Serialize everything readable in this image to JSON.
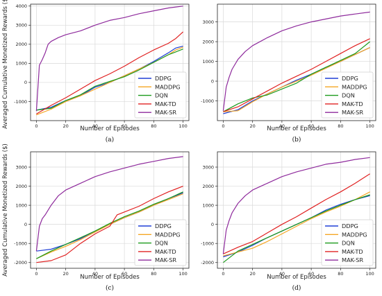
{
  "figure": {
    "ylabel": "Averaged Cumulative Monetized Rewards ($)",
    "legend_location": "lower right"
  },
  "chart_data": [
    {
      "type": "line",
      "caption": "(a)",
      "xlabel": "Number of Episodes",
      "ylabel": "Averaged Cumulative Monetized Rewards ($)",
      "xlim": [
        -4,
        104
      ],
      "ylim": [
        -2000,
        4100
      ],
      "xticks": [
        0,
        20,
        40,
        60,
        80,
        100
      ],
      "yticks": [
        -1000,
        0,
        1000,
        2000,
        3000,
        4000
      ],
      "grid": true,
      "legend": "lower right",
      "series": [
        {
          "name": "DDPG",
          "color": "#1f3fd6",
          "x": [
            0,
            10,
            20,
            30,
            40,
            50,
            60,
            70,
            80,
            90,
            95,
            100
          ],
          "y": [
            -1450,
            -1300,
            -950,
            -700,
            -250,
            0,
            350,
            700,
            1100,
            1550,
            1800,
            1900
          ]
        },
        {
          "name": "MADDPG",
          "color": "#f5a623",
          "x": [
            0,
            10,
            20,
            30,
            40,
            50,
            60,
            70,
            80,
            90,
            95,
            100
          ],
          "y": [
            -1700,
            -1400,
            -1000,
            -700,
            -350,
            0,
            350,
            700,
            1050,
            1450,
            1700,
            1850
          ]
        },
        {
          "name": "DQN",
          "color": "#1a9a1a",
          "x": [
            0,
            10,
            20,
            30,
            40,
            50,
            60,
            70,
            80,
            90,
            95,
            100
          ],
          "y": [
            -1450,
            -1350,
            -950,
            -650,
            -200,
            50,
            300,
            650,
            1050,
            1450,
            1600,
            1750
          ]
        },
        {
          "name": "MAK-TD",
          "color": "#e02020",
          "x": [
            0,
            10,
            20,
            30,
            40,
            50,
            60,
            70,
            80,
            90,
            95,
            100
          ],
          "y": [
            -1650,
            -1200,
            -800,
            -350,
            100,
            450,
            850,
            1300,
            1700,
            2050,
            2300,
            2650
          ]
        },
        {
          "name": "MAK-SR",
          "color": "#8e2a9c",
          "x": [
            0,
            2,
            4,
            6,
            8,
            10,
            15,
            20,
            30,
            40,
            50,
            60,
            70,
            80,
            90,
            100
          ],
          "y": [
            -1500,
            900,
            1200,
            1550,
            2000,
            2150,
            2350,
            2500,
            2700,
            3000,
            3250,
            3400,
            3600,
            3750,
            3900,
            4000
          ]
        }
      ]
    },
    {
      "type": "line",
      "caption": "(b)",
      "xlabel": "Number of Episodes",
      "ylabel": "",
      "xlim": [
        -4,
        104
      ],
      "ylim": [
        -2000,
        3900
      ],
      "xticks": [
        0,
        20,
        40,
        60,
        80,
        100
      ],
      "yticks": [
        -1000,
        0,
        1000,
        2000,
        3000
      ],
      "grid": true,
      "legend": "lower right",
      "series": [
        {
          "name": "DDPG",
          "color": "#1f3fd6",
          "x": [
            0,
            10,
            20,
            30,
            40,
            50,
            60,
            70,
            80,
            90,
            100
          ],
          "y": [
            -1650,
            -1450,
            -1000,
            -650,
            -300,
            50,
            350,
            700,
            1000,
            1350,
            1700
          ]
        },
        {
          "name": "MADDPG",
          "color": "#f5a623",
          "x": [
            0,
            10,
            20,
            30,
            40,
            50,
            60,
            70,
            80,
            90,
            100
          ],
          "y": [
            -1550,
            -1500,
            -1050,
            -650,
            -300,
            0,
            300,
            650,
            1000,
            1350,
            1700
          ]
        },
        {
          "name": "DQN",
          "color": "#1a9a1a",
          "x": [
            0,
            10,
            20,
            30,
            40,
            50,
            60,
            70,
            80,
            90,
            100
          ],
          "y": [
            -1550,
            -1150,
            -850,
            -700,
            -400,
            -100,
            350,
            700,
            1050,
            1400,
            2000
          ]
        },
        {
          "name": "MAK-TD",
          "color": "#e02020",
          "x": [
            0,
            10,
            20,
            30,
            40,
            50,
            60,
            70,
            80,
            90,
            100
          ],
          "y": [
            -1550,
            -1300,
            -900,
            -500,
            -100,
            250,
            600,
            1000,
            1400,
            1800,
            2150
          ]
        },
        {
          "name": "MAK-SR",
          "color": "#8e2a9c",
          "x": [
            0,
            2,
            4,
            6,
            10,
            15,
            20,
            30,
            40,
            50,
            60,
            70,
            80,
            90,
            100
          ],
          "y": [
            -1500,
            -300,
            200,
            600,
            1100,
            1500,
            1800,
            2200,
            2550,
            2800,
            3000,
            3150,
            3300,
            3400,
            3500
          ]
        }
      ]
    },
    {
      "type": "line",
      "caption": "(c)",
      "xlabel": "Number of Episodes",
      "ylabel": "Averaged Cumulative Monetized Rewards ($)",
      "xlim": [
        -4,
        104
      ],
      "ylim": [
        -2300,
        3800
      ],
      "xticks": [
        0,
        20,
        40,
        60,
        80,
        100
      ],
      "yticks": [
        -2000,
        -1000,
        0,
        1000,
        2000,
        3000
      ],
      "grid": true,
      "legend": "lower right",
      "series": [
        {
          "name": "DDPG",
          "color": "#1f3fd6",
          "x": [
            0,
            10,
            20,
            30,
            40,
            50,
            60,
            70,
            80,
            90,
            100
          ],
          "y": [
            -1400,
            -1300,
            -1050,
            -750,
            -350,
            0,
            350,
            650,
            1000,
            1350,
            1650
          ]
        },
        {
          "name": "MADDPG",
          "color": "#f5a623",
          "x": [
            0,
            10,
            20,
            30,
            40,
            50,
            60,
            70,
            80,
            90,
            100
          ],
          "y": [
            -1800,
            -1450,
            -1150,
            -800,
            -400,
            0,
            350,
            650,
            1000,
            1300,
            1600
          ]
        },
        {
          "name": "DQN",
          "color": "#1a9a1a",
          "x": [
            0,
            10,
            20,
            30,
            40,
            50,
            60,
            70,
            80,
            90,
            100
          ],
          "y": [
            -1800,
            -1400,
            -1050,
            -700,
            -350,
            50,
            400,
            700,
            1050,
            1350,
            1700
          ]
        },
        {
          "name": "MAK-TD",
          "color": "#e02020",
          "x": [
            0,
            10,
            20,
            30,
            40,
            50,
            55,
            60,
            70,
            80,
            90,
            100
          ],
          "y": [
            -2000,
            -1900,
            -1600,
            -1000,
            -500,
            -100,
            500,
            650,
            950,
            1350,
            1700,
            2000
          ]
        },
        {
          "name": "MAK-SR",
          "color": "#8e2a9c",
          "x": [
            0,
            2,
            4,
            6,
            10,
            15,
            20,
            30,
            40,
            50,
            60,
            70,
            80,
            90,
            100
          ],
          "y": [
            -1400,
            -100,
            300,
            500,
            1000,
            1500,
            1800,
            2150,
            2500,
            2750,
            2950,
            3150,
            3300,
            3450,
            3550
          ]
        }
      ]
    },
    {
      "type": "line",
      "caption": "(d)",
      "xlabel": "Number of Episodes",
      "ylabel": "",
      "xlim": [
        -4,
        104
      ],
      "ylim": [
        -2300,
        3800
      ],
      "xticks": [
        0,
        20,
        40,
        60,
        80,
        100
      ],
      "yticks": [
        -2000,
        -1000,
        0,
        1000,
        2000,
        3000
      ],
      "grid": true,
      "legend": "lower right",
      "series": [
        {
          "name": "DDPG",
          "color": "#1f3fd6",
          "x": [
            0,
            10,
            20,
            30,
            40,
            50,
            60,
            70,
            80,
            90,
            100
          ],
          "y": [
            -1700,
            -1450,
            -1100,
            -700,
            -350,
            0,
            350,
            750,
            1050,
            1300,
            1500
          ]
        },
        {
          "name": "MADDPG",
          "color": "#f5a623",
          "x": [
            0,
            10,
            20,
            30,
            40,
            50,
            60,
            70,
            80,
            90,
            100
          ],
          "y": [
            -1650,
            -1450,
            -1250,
            -900,
            -500,
            -100,
            300,
            650,
            950,
            1300,
            1700
          ]
        },
        {
          "name": "DQN",
          "color": "#1a9a1a",
          "x": [
            0,
            10,
            20,
            30,
            40,
            50,
            60,
            70,
            80,
            90,
            100
          ],
          "y": [
            -2000,
            -1400,
            -1050,
            -700,
            -350,
            0,
            350,
            700,
            1000,
            1300,
            1550
          ]
        },
        {
          "name": "MAK-TD",
          "color": "#e02020",
          "x": [
            0,
            10,
            20,
            30,
            40,
            50,
            60,
            70,
            80,
            90,
            100
          ],
          "y": [
            -1550,
            -1200,
            -900,
            -450,
            0,
            400,
            850,
            1300,
            1700,
            2150,
            2650
          ]
        },
        {
          "name": "MAK-SR",
          "color": "#8e2a9c",
          "x": [
            0,
            2,
            4,
            6,
            10,
            15,
            20,
            30,
            40,
            50,
            60,
            70,
            80,
            90,
            100
          ],
          "y": [
            -1550,
            -300,
            200,
            600,
            1100,
            1500,
            1800,
            2150,
            2500,
            2750,
            2950,
            3150,
            3250,
            3400,
            3500
          ]
        }
      ]
    }
  ]
}
